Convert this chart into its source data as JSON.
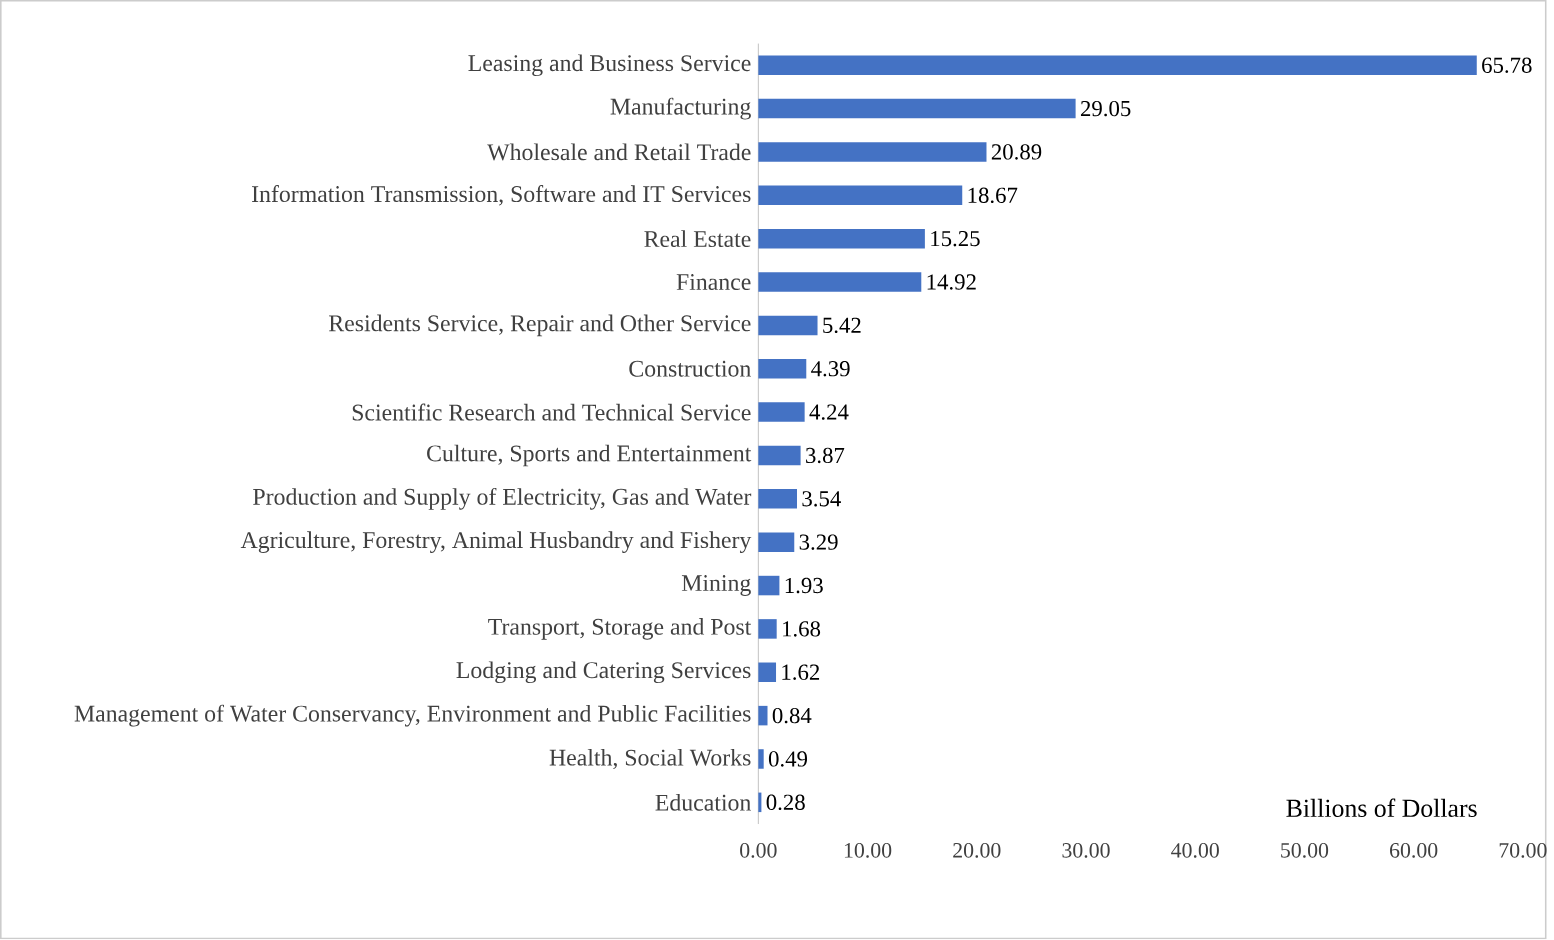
{
  "chart_data": {
    "type": "bar",
    "orientation": "horizontal",
    "xlabel": "Billions of Dollars",
    "categories": [
      "Leasing and Business Service",
      "Manufacturing",
      "Wholesale and Retail Trade",
      "Information Transmission, Software and IT Services",
      "Real Estate",
      "Finance",
      "Residents Service, Repair and Other Service",
      "Construction",
      "Scientific Research and Technical Service",
      "Culture, Sports and Entertainment",
      "Production and Supply of Electricity, Gas and Water",
      "Agriculture, Forestry, Animal Husbandry and Fishery",
      "Mining",
      "Transport, Storage and Post",
      "Lodging and Catering Services",
      "Management of Water Conservancy, Environment and Public Facilities",
      "Health, Social Works",
      "Education"
    ],
    "values": [
      65.78,
      29.05,
      20.89,
      18.67,
      15.25,
      14.92,
      5.42,
      4.39,
      4.24,
      3.87,
      3.54,
      3.29,
      1.93,
      1.68,
      1.62,
      0.84,
      0.49,
      0.28
    ],
    "value_labels": [
      "65.78",
      "29.05",
      "20.89",
      "18.67",
      "15.25",
      "14.92",
      "5.42",
      "4.39",
      "4.24",
      "3.87",
      "3.54",
      "3.29",
      "1.93",
      "1.68",
      "1.62",
      "0.84",
      "0.49",
      "0.28"
    ],
    "color": "#4472c4",
    "xlim": [
      0,
      70
    ],
    "xticks": [
      {
        "value": 0,
        "label": "0.00"
      },
      {
        "value": 10,
        "label": "10.00"
      },
      {
        "value": 20,
        "label": "20.00"
      },
      {
        "value": 30,
        "label": "30.00"
      },
      {
        "value": 40,
        "label": "40.00"
      },
      {
        "value": 50,
        "label": "50.00"
      },
      {
        "value": 60,
        "label": "60.00"
      },
      {
        "value": 70,
        "label": "70.00"
      }
    ],
    "grid": false
  }
}
